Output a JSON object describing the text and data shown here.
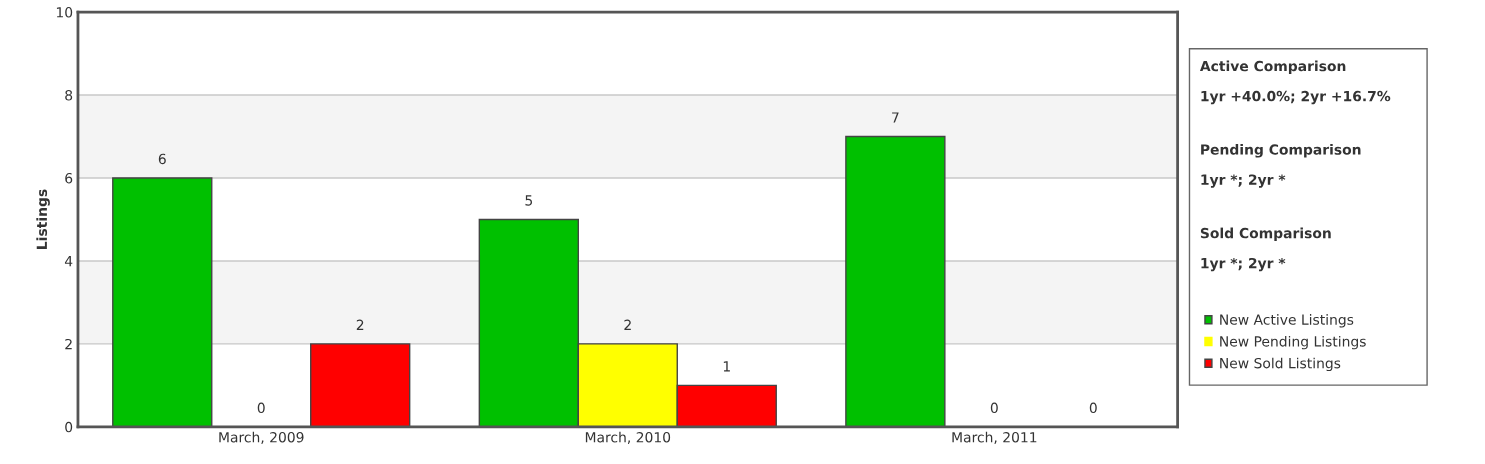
{
  "chart_data": {
    "type": "bar",
    "ylabel": "Listings",
    "categories": [
      "March, 2009",
      "March, 2010",
      "March, 2011"
    ],
    "series": [
      {
        "name": "New Active Listings",
        "color": "#00c000",
        "values": [
          6,
          5,
          7
        ]
      },
      {
        "name": "New Pending Listings",
        "color": "#ffff00",
        "values": [
          0,
          2,
          0
        ]
      },
      {
        "name": "New Sold Listings",
        "color": "#ff0000",
        "values": [
          2,
          1,
          0
        ]
      }
    ],
    "ylim": [
      0,
      10
    ],
    "yticks": [
      0,
      2,
      4,
      6,
      8,
      10
    ],
    "grid": "y",
    "bands": [
      {
        "axis": "y",
        "from": 2,
        "to": 4,
        "color": "#f4f4f4"
      },
      {
        "axis": "y",
        "from": 6,
        "to": 8,
        "color": "#f4f4f4"
      }
    ],
    "data_labels": true,
    "legend": "right",
    "annotations": [
      "Active Comparison",
      "1yr +40.0%; 2yr +16.7%",
      "Pending Comparison",
      "1yr *; 2yr *",
      "Sold Comparison",
      "1yr *; 2yr *"
    ]
  }
}
